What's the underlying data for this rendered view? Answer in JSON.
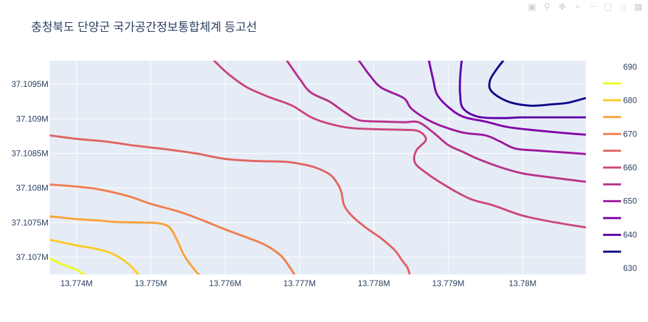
{
  "chart_data": {
    "type": "contour",
    "title": "충청북도 단양군 국가공간정보통합체계 등고선",
    "xlabel": "",
    "ylabel": "",
    "xlim": [
      13773640,
      13780850
    ],
    "ylim": [
      37106750,
      37109840
    ],
    "x_ticks": [
      {
        "value": 13774000,
        "label": "13.774M"
      },
      {
        "value": 13775000,
        "label": "13.775M"
      },
      {
        "value": 13776000,
        "label": "13.776M"
      },
      {
        "value": 13777000,
        "label": "13.777M"
      },
      {
        "value": 13778000,
        "label": "13.778M"
      },
      {
        "value": 13779000,
        "label": "13.779M"
      },
      {
        "value": 13780000,
        "label": "13.78M"
      }
    ],
    "y_ticks": [
      {
        "value": 37107000,
        "label": "37.107M"
      },
      {
        "value": 37107500,
        "label": "37.1075M"
      },
      {
        "value": 37108000,
        "label": "37.108M"
      },
      {
        "value": 37108500,
        "label": "37.1085M"
      },
      {
        "value": 37109000,
        "label": "37.109M"
      },
      {
        "value": 37109500,
        "label": "37.1095M"
      }
    ],
    "colorbar": {
      "labels": [
        "690",
        "680",
        "670",
        "660",
        "650",
        "640",
        "630"
      ],
      "swatches": [
        {
          "level": 685,
          "color": "#f0f921"
        },
        {
          "level": 680,
          "color": "#fdca26"
        },
        {
          "level": 675,
          "color": "#fba238"
        },
        {
          "level": 670,
          "color": "#f07f4f"
        },
        {
          "level": 665,
          "color": "#e16462"
        },
        {
          "level": 660,
          "color": "#cc4778"
        },
        {
          "level": 655,
          "color": "#b83289"
        },
        {
          "level": 650,
          "color": "#9c179e"
        },
        {
          "level": 645,
          "color": "#7e03a8"
        },
        {
          "level": 640,
          "color": "#5c01a6"
        },
        {
          "level": 635,
          "color": "#0d0887"
        }
      ]
    },
    "contours": [
      {
        "level": 685,
        "color": "#f0f921",
        "points": [
          [
            13773640,
            37106980
          ],
          [
            13773800,
            37106900
          ],
          [
            13774000,
            37106820
          ],
          [
            13774100,
            37106750
          ]
        ]
      },
      {
        "level": 680,
        "color": "#fdca26",
        "points": [
          [
            13773640,
            37107250
          ],
          [
            13774000,
            37107170
          ],
          [
            13774300,
            37107110
          ],
          [
            13774500,
            37107040
          ],
          [
            13774700,
            37106900
          ],
          [
            13774830,
            37106750
          ]
        ]
      },
      {
        "level": 675,
        "color": "#fba238",
        "points": [
          [
            13773640,
            37107590
          ],
          [
            13774000,
            37107550
          ],
          [
            13774300,
            37107530
          ],
          [
            13774500,
            37107510
          ],
          [
            13774850,
            37107500
          ],
          [
            13775100,
            37107490
          ],
          [
            13775250,
            37107430
          ],
          [
            13775350,
            37107250
          ],
          [
            13775450,
            37107020
          ],
          [
            13775600,
            37106800
          ],
          [
            13775650,
            37106750
          ]
        ]
      },
      {
        "level": 670,
        "color": "#f07f4f",
        "points": [
          [
            13773640,
            37108050
          ],
          [
            13774000,
            37108020
          ],
          [
            13774300,
            37107980
          ],
          [
            13774700,
            37107880
          ],
          [
            13775000,
            37107770
          ],
          [
            13775400,
            37107650
          ],
          [
            13775700,
            37107530
          ],
          [
            13776000,
            37107400
          ],
          [
            13776300,
            37107280
          ],
          [
            13776550,
            37107170
          ],
          [
            13776750,
            37107020
          ],
          [
            13776870,
            37106850
          ],
          [
            13776930,
            37106750
          ]
        ]
      },
      {
        "level": 665,
        "color": "#e16462",
        "points": [
          [
            13773640,
            37108760
          ],
          [
            13774000,
            37108710
          ],
          [
            13774400,
            37108670
          ],
          [
            13774800,
            37108610
          ],
          [
            13775200,
            37108560
          ],
          [
            13775600,
            37108500
          ],
          [
            13776000,
            37108420
          ],
          [
            13776400,
            37108390
          ],
          [
            13776800,
            37108380
          ],
          [
            13777000,
            37108350
          ],
          [
            13777200,
            37108300
          ],
          [
            13777400,
            37108200
          ],
          [
            13777500,
            37108080
          ],
          [
            13777560,
            37107950
          ],
          [
            13777600,
            37107750
          ],
          [
            13777700,
            37107600
          ],
          [
            13777900,
            37107420
          ],
          [
            13778100,
            37107270
          ],
          [
            13778280,
            37107100
          ],
          [
            13778380,
            37106950
          ],
          [
            13778450,
            37106850
          ],
          [
            13778480,
            37106750
          ]
        ]
      },
      {
        "level": 660,
        "color": "#cc4778",
        "points": [
          [
            13775850,
            37109840
          ],
          [
            13776050,
            37109640
          ],
          [
            13776300,
            37109450
          ],
          [
            13776600,
            37109310
          ],
          [
            13776900,
            37109190
          ],
          [
            13777200,
            37109000
          ],
          [
            13777600,
            37108880
          ],
          [
            13778000,
            37108850
          ],
          [
            13778400,
            37108840
          ],
          [
            13778600,
            37108820
          ],
          [
            13778700,
            37108700
          ],
          [
            13778570,
            37108540
          ],
          [
            13778550,
            37108370
          ],
          [
            13778700,
            37108220
          ],
          [
            13779000,
            37108010
          ],
          [
            13779300,
            37107840
          ],
          [
            13779600,
            37107750
          ],
          [
            13780000,
            37107600
          ],
          [
            13780400,
            37107510
          ],
          [
            13780850,
            37107430
          ]
        ]
      },
      {
        "level": 655,
        "color": "#b83289",
        "points": [
          [
            13776830,
            37109840
          ],
          [
            13777000,
            37109580
          ],
          [
            13777150,
            37109380
          ],
          [
            13777400,
            37109250
          ],
          [
            13777600,
            37109100
          ],
          [
            13777800,
            37108980
          ],
          [
            13778100,
            37108960
          ],
          [
            13778400,
            37108950
          ],
          [
            13778600,
            37108950
          ],
          [
            13778800,
            37108800
          ],
          [
            13779000,
            37108620
          ],
          [
            13779200,
            37108520
          ],
          [
            13779400,
            37108420
          ],
          [
            13779700,
            37108300
          ],
          [
            13780000,
            37108210
          ],
          [
            13780400,
            37108150
          ],
          [
            13780850,
            37108090
          ]
        ]
      },
      {
        "level": 650,
        "color": "#9c179e",
        "points": [
          [
            13777800,
            37109840
          ],
          [
            13777950,
            37109620
          ],
          [
            13778100,
            37109450
          ],
          [
            13778400,
            37109300
          ],
          [
            13778500,
            37109150
          ],
          [
            13778700,
            37109000
          ],
          [
            13778900,
            37108900
          ],
          [
            13779200,
            37108800
          ],
          [
            13779500,
            37108760
          ],
          [
            13779700,
            37108670
          ],
          [
            13779900,
            37108570
          ],
          [
            13780200,
            37108540
          ],
          [
            13780600,
            37108510
          ],
          [
            13780850,
            37108490
          ]
        ]
      },
      {
        "level": 645,
        "color": "#7e03a8",
        "points": [
          [
            13778740,
            37109840
          ],
          [
            13778800,
            37109550
          ],
          [
            13778850,
            37109350
          ],
          [
            13779000,
            37109170
          ],
          [
            13779200,
            37109030
          ],
          [
            13779500,
            37108960
          ],
          [
            13779800,
            37108880
          ],
          [
            13780200,
            37108830
          ],
          [
            13780600,
            37108790
          ],
          [
            13780850,
            37108770
          ]
        ]
      },
      {
        "level": 640,
        "color": "#5c01a6",
        "points": [
          [
            13779180,
            37109840
          ],
          [
            13779160,
            37109600
          ],
          [
            13779160,
            37109350
          ],
          [
            13779200,
            37109150
          ],
          [
            13779400,
            37109030
          ],
          [
            13779700,
            37109010
          ],
          [
            13780000,
            37109020
          ],
          [
            13780400,
            37109020
          ],
          [
            13780850,
            37109020
          ]
        ]
      },
      {
        "level": 635,
        "color": "#0d0887",
        "points": [
          [
            13779740,
            37109840
          ],
          [
            13779640,
            37109700
          ],
          [
            13779560,
            37109550
          ],
          [
            13779580,
            37109400
          ],
          [
            13779800,
            37109250
          ],
          [
            13780100,
            37109190
          ],
          [
            13780400,
            37109210
          ],
          [
            13780600,
            37109230
          ],
          [
            13780850,
            37109300
          ]
        ]
      }
    ]
  }
}
